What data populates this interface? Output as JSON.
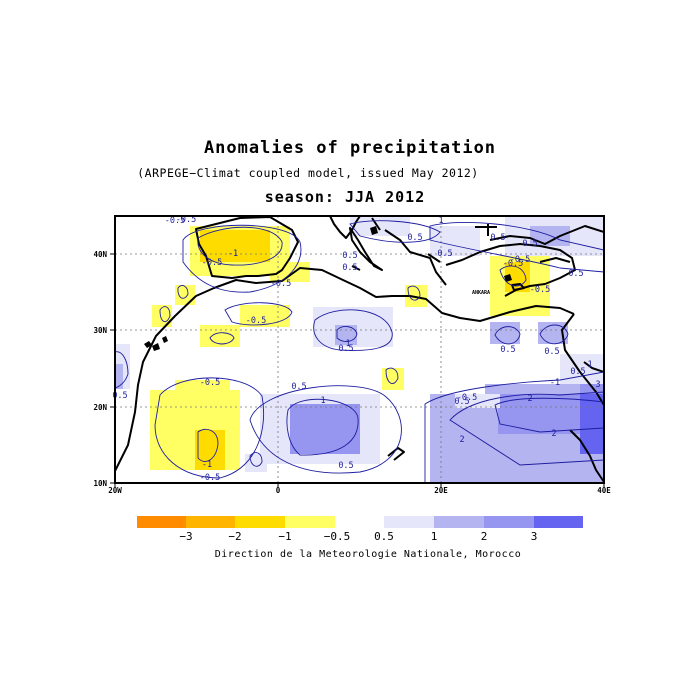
{
  "header": {
    "title": "Anomalies of precipitation",
    "subtitle": "(ARPEGE−Climat coupled model, issued May 2012)",
    "season": "season: JJA 2012"
  },
  "map": {
    "lat_ticks": [
      "10N",
      "20N",
      "30N",
      "40N"
    ],
    "lon_ticks": [
      "20W",
      "0",
      "20E",
      "40E"
    ],
    "city_label": "ANKARA",
    "contour_labels": [
      "-1",
      "-0.5",
      "-0.5",
      "-0.5",
      "-0.5",
      "-0.5",
      "-0.5",
      "-1",
      "0.5",
      "0.5",
      "1",
      "0.5",
      "0.5",
      "-0.5",
      "1",
      "2",
      "2",
      "2",
      "0.5",
      "0.5",
      "-1",
      "0.5",
      "1",
      "3",
      "0.5",
      "0.5",
      "-0.5",
      "0.5",
      "0.5",
      "1",
      "0.5",
      "-0.5",
      "0.5",
      "0.5",
      "-0.5",
      "-0.5",
      "0.5"
    ]
  },
  "legend": {
    "labels": [
      "−3",
      "−2",
      "−1",
      "−0.5",
      "0.5",
      "1",
      "2",
      "3"
    ],
    "colors": {
      "neg3": "#ff8c00",
      "neg2": "#ffb400",
      "neg1": "#ffdc00",
      "neg05": "#ffff64",
      "pos05": "#e6e6fa",
      "pos1": "#b4b4f0",
      "pos2": "#9696f0",
      "pos3": "#6464f0"
    }
  },
  "credit": "Direction de la Meteorologie Nationale, Morocco"
}
